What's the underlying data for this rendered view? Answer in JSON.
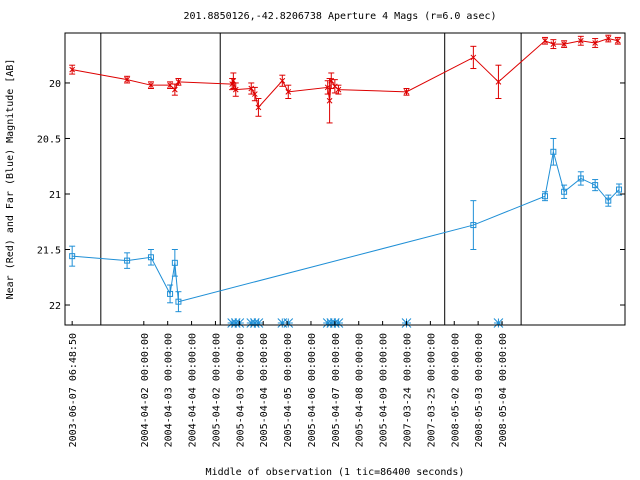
{
  "chart_data": {
    "type": "line",
    "title": "201.8850126,-42.8206738   Aperture 4 Mags (r=6.0 asec)",
    "xlabel": "Middle of observation (1 tic=86400 seconds)",
    "ylabel": "Near (Red) and Far (Blue) Magnitude [AB]",
    "ylim": [
      22.18,
      19.55
    ],
    "y_ticks": [
      20,
      20.5,
      21,
      21.5,
      22
    ],
    "y_tick_labels": [
      "20",
      "20.5",
      "21",
      "21.5",
      "22"
    ],
    "x_tick_labels": [
      "2003-06-07 06:48:50",
      "2004-04-02 00:00:00",
      "2004-04-03 00:00:00",
      "2004-04-04 00:00:00",
      "2005-04-02 00:00:00",
      "2005-04-03 00:00:00",
      "2005-04-04 00:00:00",
      "2005-04-05 00:00:00",
      "2005-04-06 00:00:00",
      "2005-04-07 00:00:00",
      "2005-04-08 00:00:00",
      "2005-04-09 00:00:00",
      "2007-03-24 00:00:00",
      "2007-03-25 00:00:00",
      "2008-05-02 00:00:00",
      "2008-05-03 00:00:00",
      "2008-05-04 00:00:00"
    ],
    "segment_breaks": [
      1.2,
      6.2,
      15.6,
      18.8
    ],
    "series": [
      {
        "color": "#dd0000",
        "marker": "x",
        "points": [
          {
            "x": 0.0,
            "y": 19.88,
            "err": 0.04
          },
          {
            "x": 2.3,
            "y": 19.97,
            "err": 0.03
          },
          {
            "x": 3.3,
            "y": 20.02,
            "err": 0.03
          },
          {
            "x": 4.1,
            "y": 20.02,
            "err": 0.03
          },
          {
            "x": 4.3,
            "y": 20.06,
            "err": 0.05
          },
          {
            "x": 4.45,
            "y": 19.99,
            "err": 0.03
          },
          {
            "x": 6.7,
            "y": 20.01,
            "err": 0.05
          },
          {
            "x": 6.75,
            "y": 19.98,
            "err": 0.07
          },
          {
            "x": 6.85,
            "y": 20.06,
            "err": 0.06
          },
          {
            "x": 7.5,
            "y": 20.05,
            "err": 0.05
          },
          {
            "x": 7.65,
            "y": 20.1,
            "err": 0.06
          },
          {
            "x": 7.8,
            "y": 20.22,
            "err": 0.08
          },
          {
            "x": 8.8,
            "y": 19.98,
            "err": 0.05
          },
          {
            "x": 9.05,
            "y": 20.08,
            "err": 0.06
          },
          {
            "x": 10.7,
            "y": 20.04,
            "err": 0.06
          },
          {
            "x": 10.78,
            "y": 20.16,
            "err": 0.2
          },
          {
            "x": 10.85,
            "y": 19.98,
            "err": 0.07
          },
          {
            "x": 11.0,
            "y": 20.03,
            "err": 0.06
          },
          {
            "x": 11.15,
            "y": 20.06,
            "err": 0.04
          },
          {
            "x": 14.0,
            "y": 20.08,
            "err": 0.03
          },
          {
            "x": 16.8,
            "y": 19.77,
            "err": 0.1
          },
          {
            "x": 17.85,
            "y": 19.99,
            "err": 0.15
          },
          {
            "x": 19.8,
            "y": 19.62,
            "err": 0.03
          },
          {
            "x": 20.15,
            "y": 19.65,
            "err": 0.04
          },
          {
            "x": 20.6,
            "y": 19.65,
            "err": 0.03
          },
          {
            "x": 21.3,
            "y": 19.62,
            "err": 0.04
          },
          {
            "x": 21.9,
            "y": 19.64,
            "err": 0.04
          },
          {
            "x": 22.45,
            "y": 19.6,
            "err": 0.03
          },
          {
            "x": 22.85,
            "y": 19.62,
            "err": 0.03
          }
        ]
      },
      {
        "color": "#1f8fd6",
        "marker": "square",
        "points": [
          {
            "x": 0.0,
            "y": 21.56,
            "err": 0.09
          },
          {
            "x": 2.3,
            "y": 21.6,
            "err": 0.07
          },
          {
            "x": 3.3,
            "y": 21.57,
            "err": 0.07
          },
          {
            "x": 4.1,
            "y": 21.9,
            "err": 0.08
          },
          {
            "x": 4.3,
            "y": 21.62,
            "err": 0.12
          },
          {
            "x": 4.45,
            "y": 21.97,
            "err": 0.09
          },
          {
            "x": 16.8,
            "y": 21.28,
            "err": 0.22
          },
          {
            "x": 19.8,
            "y": 21.02,
            "err": 0.04
          },
          {
            "x": 20.15,
            "y": 20.62,
            "err": 0.12
          },
          {
            "x": 20.6,
            "y": 20.98,
            "err": 0.06
          },
          {
            "x": 21.3,
            "y": 20.86,
            "err": 0.06
          },
          {
            "x": 21.9,
            "y": 20.92,
            "err": 0.05
          },
          {
            "x": 22.45,
            "y": 21.06,
            "err": 0.05
          },
          {
            "x": 22.9,
            "y": 20.96,
            "err": 0.05
          }
        ]
      }
    ],
    "star_markers": {
      "color": "#1f8fd6",
      "x": [
        6.7,
        6.85,
        7.0,
        7.5,
        7.65,
        7.8,
        8.8,
        9.05,
        10.7,
        10.85,
        11.0,
        11.15,
        14.0,
        17.85
      ]
    }
  }
}
